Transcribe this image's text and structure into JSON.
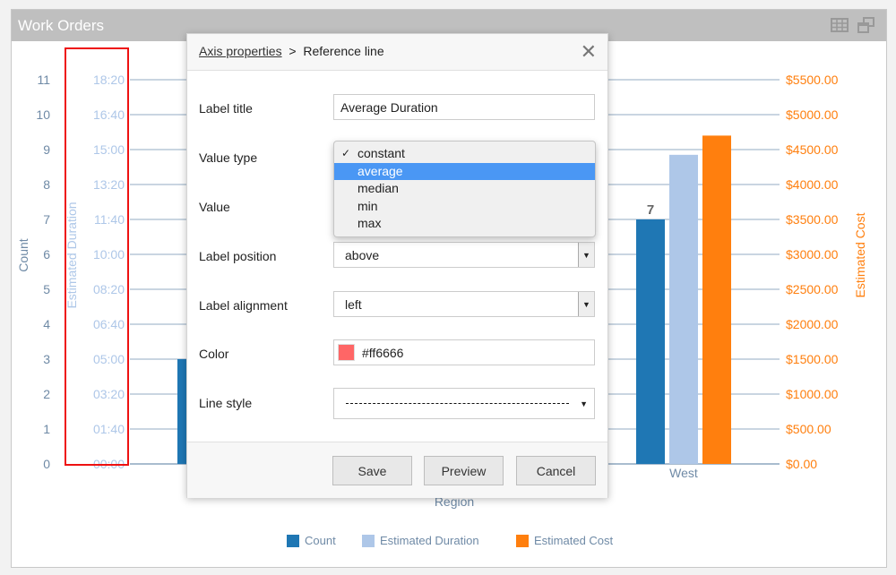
{
  "panel": {
    "title": "Work Orders",
    "icons": [
      "table-icon",
      "restore-window-icon"
    ]
  },
  "chart_data": {
    "type": "bar",
    "categories": [
      "",
      "West"
    ],
    "xlabel": "Region",
    "y_axes": [
      {
        "label": "Count",
        "ticks": [
          "0",
          "1",
          "2",
          "3",
          "4",
          "5",
          "6",
          "7",
          "8",
          "9",
          "10",
          "11"
        ],
        "range": [
          0,
          11
        ],
        "color": "#6f8aa6"
      },
      {
        "label": "Estimated Duration",
        "ticks": [
          "00:00",
          "01:40",
          "03:20",
          "05:00",
          "06:40",
          "08:20",
          "10:00",
          "11:40",
          "13:20",
          "15:00",
          "16:40",
          "18:20"
        ],
        "range": [
          "00:00",
          "18:20"
        ],
        "color": "#aec7e8"
      },
      {
        "label": "Estimated Cost",
        "ticks": [
          "$0.00",
          "$500.00",
          "$1000.00",
          "$1500.00",
          "$2000.00",
          "$2500.00",
          "$3000.00",
          "$3500.00",
          "$4000.00",
          "$4500.00",
          "$5000.00",
          "$5500.00"
        ],
        "range": [
          0,
          5500
        ],
        "color": "#ff7f0e"
      }
    ],
    "series": [
      {
        "name": "Count",
        "values": [
          3,
          7
        ],
        "color": "#1f77b4",
        "data_labels": [
          "",
          "7"
        ]
      },
      {
        "name": "Estimated Duration",
        "values": [
          null,
          "14:45"
        ],
        "color": "#aec7e8"
      },
      {
        "name": "Estimated Cost",
        "values": [
          null,
          4700
        ],
        "color": "#ff7f0e"
      }
    ],
    "legend": "bottom",
    "grid": true
  },
  "dialog": {
    "breadcrumb_link": "Axis properties",
    "breadcrumb_sep": ">",
    "breadcrumb_current": "Reference line",
    "fields": {
      "label_title": {
        "label": "Label title",
        "value": "Average Duration"
      },
      "value_type": {
        "label": "Value type",
        "options": [
          "constant",
          "average",
          "median",
          "min",
          "max"
        ],
        "checked": "constant",
        "highlighted": "average"
      },
      "value": {
        "label": "Value"
      },
      "label_position": {
        "label": "Label position",
        "value": "above"
      },
      "label_alignment": {
        "label": "Label alignment",
        "value": "left"
      },
      "color": {
        "label": "Color",
        "hash": "#",
        "value": "ff6666",
        "swatch": "#ff6666"
      },
      "line_style": {
        "label": "Line style",
        "value": "dashed"
      }
    },
    "buttons": {
      "save": "Save",
      "preview": "Preview",
      "cancel": "Cancel"
    }
  }
}
